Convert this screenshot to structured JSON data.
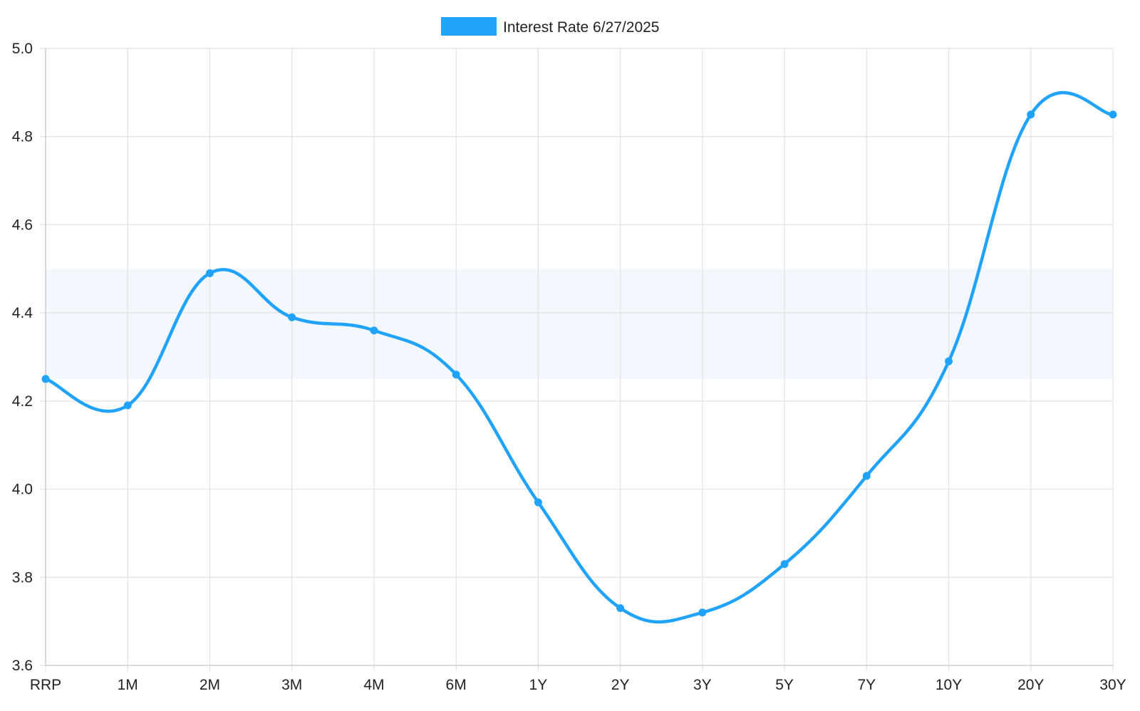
{
  "chart_data": {
    "type": "line",
    "title": "",
    "xlabel": "",
    "ylabel": "",
    "categories": [
      "RRP",
      "1M",
      "2M",
      "3M",
      "4M",
      "6M",
      "1Y",
      "2Y",
      "3Y",
      "5Y",
      "7Y",
      "10Y",
      "20Y",
      "30Y"
    ],
    "series": [
      {
        "name": "Interest Rate 6/27/2025",
        "values": [
          4.25,
          4.19,
          4.49,
          4.39,
          4.36,
          4.26,
          3.97,
          3.73,
          3.72,
          3.83,
          4.03,
          4.29,
          4.85,
          4.85
        ],
        "color": "#22a3fb"
      }
    ],
    "ylim": [
      3.6,
      5.0
    ],
    "yticks": [
      3.6,
      3.8,
      4.0,
      4.2,
      4.4,
      4.6,
      4.8,
      5.0
    ],
    "ytick_labels": [
      "3.6",
      "3.8",
      "4.0",
      "4.2",
      "4.4",
      "4.6",
      "4.8",
      "5.0"
    ],
    "shaded_band": {
      "y_from": 4.25,
      "y_to": 4.5,
      "color": "#f2f8fd"
    },
    "grid": true,
    "legend_position": "top-center",
    "line_style": "smooth"
  }
}
